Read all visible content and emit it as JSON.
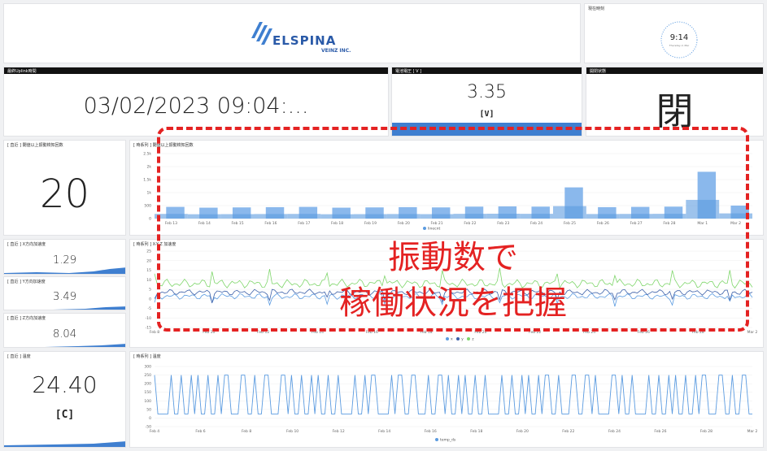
{
  "logo": {
    "brand": "ELSPINA",
    "sub": "VEINZ INC."
  },
  "clock": {
    "title": "現在時刻",
    "time": "9:14",
    "date": "Thursday 2, Mar"
  },
  "uplink": {
    "title": "最終Uplink時間",
    "value": "03/02/2023 09:04:..."
  },
  "voltage": {
    "title": "電池電圧 [ V ]",
    "value": "3.35",
    "unit": "[V]",
    "fill_fraction": 0.18
  },
  "door": {
    "title": "開閉状態",
    "value": "閉"
  },
  "count": {
    "title": "[ 直近 ] 閾値以上振動検知回数",
    "value": "20"
  },
  "x_accel": {
    "title": "[ 直近 ] X方向加速度",
    "value": "1.29"
  },
  "y_accel": {
    "title": "[ 直近 ] Y方向加速度",
    "value": "3.49"
  },
  "z_accel": {
    "title": "[ 直近 ] Z方向加速度",
    "value": "8.04"
  },
  "temp": {
    "title": "[ 直近 ] 温度",
    "value": "24.40",
    "unit": "[C]"
  },
  "overlay": {
    "line1": "振動数で",
    "line2": "稼働状況を把握"
  },
  "colors": {
    "accent": "#3f7fd0",
    "series_blue": "#5b9be0",
    "series_green": "#7fd66b",
    "overlay_red": "#e42222"
  },
  "chart_data": [
    {
      "type": "bar",
      "title": "[ 時系列 ] 閾値以上振動検知回数",
      "ylim": [
        0,
        2500
      ],
      "yticks": [
        "2.5k",
        "2k",
        "1.5k",
        "1k",
        "500",
        "0"
      ],
      "x": [
        "Feb 13",
        "Feb 14",
        "Feb 15",
        "Feb 16",
        "Feb 17",
        "Feb 18",
        "Feb 19",
        "Feb 20",
        "Feb 21",
        "Feb 22",
        "Feb 23",
        "Feb 24",
        "Feb 25",
        "Feb 26",
        "Feb 27",
        "Feb 28",
        "Mar 1",
        "Mar 2"
      ],
      "series": [
        {
          "name": "linecnt",
          "values": [
            450,
            420,
            430,
            440,
            450,
            420,
            430,
            440,
            430,
            460,
            470,
            460,
            1200,
            440,
            450,
            460,
            1800,
            500
          ]
        }
      ]
    },
    {
      "type": "line",
      "title": "[ 時系列 ] X-Y-Z 加速度",
      "ylim": [
        -15,
        25
      ],
      "yticks": [
        "25",
        "20",
        "15",
        "10",
        "5",
        "0",
        "-5",
        "-10",
        "-15"
      ],
      "x": [
        "Feb 8",
        "Feb 10",
        "Feb 12",
        "Feb 14",
        "Feb 16",
        "Feb 18",
        "Feb 20",
        "Feb 22",
        "Feb 24",
        "Feb 26",
        "Feb 28",
        "Mar 2"
      ],
      "series": [
        {
          "name": "x",
          "values": [
            1.3,
            1.4,
            1.2,
            1.3,
            1.5,
            1.3,
            1.2,
            1.4,
            1.3,
            1.3,
            1.2,
            1.3
          ]
        },
        {
          "name": "y",
          "values": [
            3.5,
            3.4,
            3.6,
            3.5,
            3.4,
            3.5,
            3.6,
            3.5,
            3.4,
            3.5,
            3.5,
            3.5
          ]
        },
        {
          "name": "z",
          "values": [
            8,
            8.1,
            7.9,
            8,
            8.2,
            8,
            8,
            7.9,
            8.1,
            8,
            8,
            8
          ]
        }
      ]
    },
    {
      "type": "line",
      "title": "[ 時系列 ] 温度",
      "ylim": [
        -50,
        300
      ],
      "yticks": [
        "300",
        "250",
        "200",
        "150",
        "100",
        "50",
        "0",
        "-50"
      ],
      "x": [
        "Feb 4",
        "Feb 6",
        "Feb 8",
        "Feb 10",
        "Feb 12",
        "Feb 14",
        "Feb 16",
        "Feb 18",
        "Feb 20",
        "Feb 22",
        "Feb 24",
        "Feb 26",
        "Feb 28",
        "Mar 2"
      ],
      "series": [
        {
          "name": "temp_ds",
          "values": [
            24,
            250,
            24,
            250,
            24,
            24,
            250,
            24,
            250,
            24,
            250,
            24,
            250,
            24
          ]
        }
      ]
    }
  ]
}
